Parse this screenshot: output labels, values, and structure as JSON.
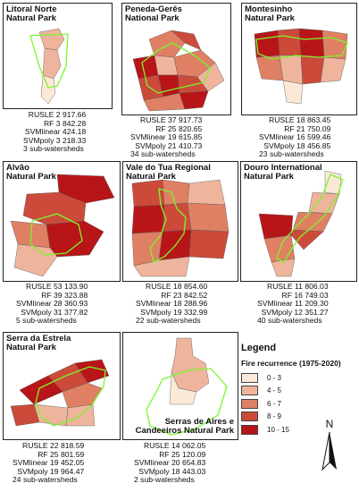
{
  "colors": {
    "class_0_3": "#fbe9d8",
    "class_4_5": "#efb49c",
    "class_6_7": "#df8064",
    "class_8_9": "#cc4a3a",
    "class_10_15": "#b81518",
    "park_outline": "#7cf52a"
  },
  "panels": [
    {
      "title": "Litoral Norte\nNatural Park",
      "stats": [
        "RUSLE  2 917.66",
        "RF  3 842.28",
        "SVMlinear  424.18",
        "SVMpoly  3 218.33"
      ],
      "watersheds": "3 sub-watersheds"
    },
    {
      "title": "Peneda-Gerês\nNational Park",
      "stats": [
        "RUSLE  37 917.73",
        "RF  25 820.65",
        "SVMlinear  19 615.85",
        "SVMpoly  21 410.73"
      ],
      "watersheds": "34 sub-watersheds"
    },
    {
      "title": "Montesinho\nNatural Park",
      "stats": [
        "RUSLE  18 863.45",
        "RF  21 750.09",
        "SVMlinear  16 599.46",
        "SVMpoly  18 456.85"
      ],
      "watersheds": "23 sub-watersheds"
    },
    {
      "title": "Alvão\nNatural Park",
      "stats": [
        "RUSLE  53 133.90",
        "RF  39 323.88",
        "SVMlinear  28 360.93",
        "SVMpoly  31 377.82"
      ],
      "watersheds": "5 sub-watersheds"
    },
    {
      "title": "Vale do Tua Regional\nNatural Park",
      "stats": [
        "RUSLE  18 854.60",
        "RF  23 842.52",
        "SVMlinear  18 288.96",
        "SVMpoly  19 332.99"
      ],
      "watersheds": "22 sub-watersheds"
    },
    {
      "title": "Douro International\nNatural Park",
      "stats": [
        "RUSLE  11 806.03",
        "RF  16 749.03",
        "SVMlinear  11 209.30",
        "SVMpoly  12 351.27"
      ],
      "watersheds": "40 sub-watersheds"
    },
    {
      "title": "Serra da Estrela\nNatural Park",
      "stats": [
        "RUSLE  22 818.59",
        "RF  25 801.59",
        "SVMlinear  19 452.05",
        "SVMpoly  19 964.47"
      ],
      "watersheds": "24 sub-watersheds"
    },
    {
      "title": "Serras de Aires e\nCandeeiros Natural Park",
      "stats": [
        "RUSLE  14 062.05",
        "RF  25 120.09",
        "SVMlinear  20 654.83",
        "SVMpoly  18 443.03"
      ],
      "watersheds": "2 sub-watersheds"
    }
  ],
  "legend": {
    "title": "Legend",
    "subtitle": "Fire recurrence (1975-2020)",
    "classes": [
      "0 - 3",
      "4 - 5",
      "6 - 7",
      "8 - 9",
      "10 - 15"
    ]
  },
  "north_arrow": {
    "label": "N"
  }
}
